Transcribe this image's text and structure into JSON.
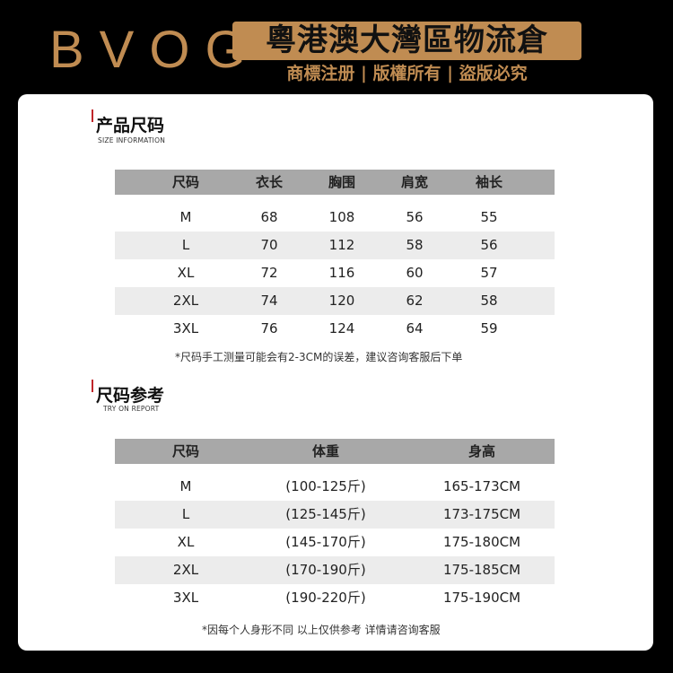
{
  "header": {
    "logo": "BVOG",
    "banner": "粵港澳大灣區物流倉",
    "tagline": "商標注册 | 版權所有 | 盜版必究"
  },
  "colors": {
    "gold": "#c08c52",
    "accent_bar": "#c0262a",
    "table_header": "#a8a8a8"
  },
  "size_info": {
    "title": "产品尺码",
    "subtitle": "SIZE INFORMATION",
    "columns": [
      "尺码",
      "衣长",
      "胸围",
      "肩宽",
      "袖长"
    ],
    "rows": [
      [
        "M",
        "68",
        "108",
        "56",
        "55"
      ],
      [
        "L",
        "70",
        "112",
        "58",
        "56"
      ],
      [
        "XL",
        "72",
        "116",
        "60",
        "57"
      ],
      [
        "2XL",
        "74",
        "120",
        "62",
        "58"
      ],
      [
        "3XL",
        "76",
        "124",
        "64",
        "59"
      ]
    ],
    "note": "*尺码手工测量可能会有2-3CM的误差，建议咨询客服后下单"
  },
  "try_on": {
    "title": "尺码参考",
    "subtitle": "TRY ON REPORT",
    "columns": [
      "尺码",
      "体重",
      "身高"
    ],
    "rows": [
      [
        "M",
        "(100-125斤)",
        "165-173CM"
      ],
      [
        "L",
        "(125-145斤)",
        "173-175CM"
      ],
      [
        "XL",
        "(145-170斤)",
        "175-180CM"
      ],
      [
        "2XL",
        "(170-190斤)",
        "175-185CM"
      ],
      [
        "3XL",
        "(190-220斤)",
        "175-190CM"
      ]
    ],
    "note": "*因每个人身形不同 以上仅供参考 详情请咨询客服"
  }
}
